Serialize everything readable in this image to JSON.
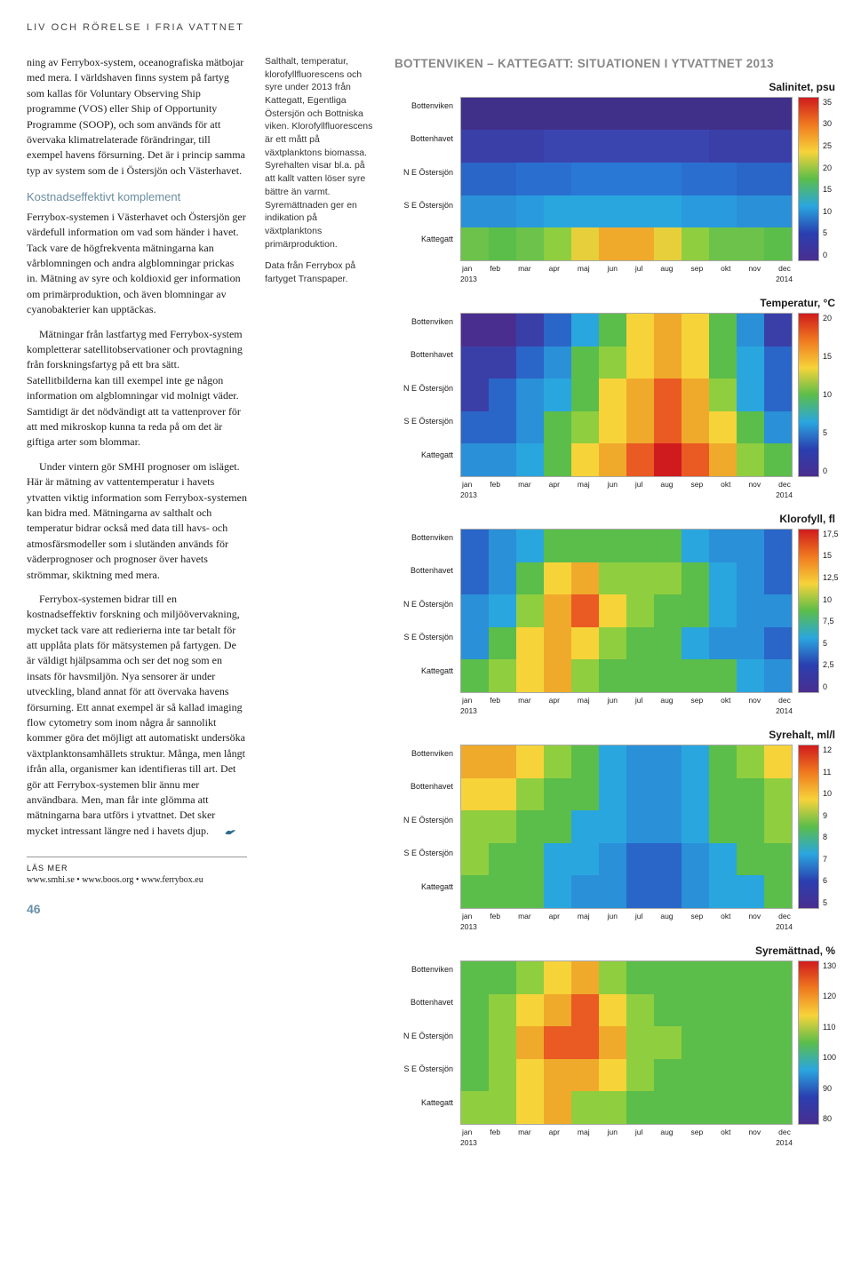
{
  "kicker": "LIV OCH RÖRELSE I FRIA VATTNET",
  "page_number": "46",
  "body": {
    "p1": "ning av Ferrybox-system, oceanografiska mätbojar med mera. I världshaven finns system på fartyg som kallas för Voluntary Observing Ship programme (VOS) eller Ship of Opportunity Programme (SOOP), och som används för att övervaka klimatrelaterade förändringar, till exempel havens försurning. Det är i princip samma typ av system som de i Östersjön och Västerhavet.",
    "sub1": "Kostnadseffektivt komplement",
    "p2": "Ferrybox-systemen i Västerhavet och Östersjön ger värdefull information om vad som händer i havet. Tack vare de högfrekventa mätningarna kan vårblomningen och andra algblomningar prickas in. Mätning av syre och koldioxid ger information om primärproduktion, och även blomningar av cyanobakterier kan upptäckas.",
    "p3": "Mätningar från lastfartyg med Ferrybox-system kompletterar satellitobservationer och provtagning från forskningsfartyg på ett bra sätt. Satellitbilderna kan till exempel inte ge någon information om algblomningar vid molnigt väder. Samtidigt är det nödvändigt att ta vattenprover för att med mikroskop kunna ta reda på om det är giftiga arter som blommar.",
    "p4": "Under vintern gör SMHI prognoser om isläget. Här är mätning av vattentemperatur i havets ytvatten viktig information som Ferrybox-systemen kan bidra med. Mätningarna av salthalt och temperatur bidrar också med data till havs- och atmosfärsmodeller som i slutänden används för väderprognoser och prognoser över havets strömmar, skiktning med mera.",
    "p5": "Ferrybox-systemen bidrar till en kostnadseffektiv forskning och miljöövervakning, mycket tack vare att redierierna inte tar betalt för att upplåta plats för mätsystemen på fartygen. De är väldigt hjälpsamma och ser det nog som en insats för havsmiljön. Nya sensorer är under utveckling, bland annat för att övervaka havens försurning. Ett annat exempel är så kallad imaging flow cytometry som inom några år sannolikt kommer göra det möjligt att automatiskt undersöka växtplanktonsamhällets struktur. Många, men långt ifrån alla, organismer kan identifieras till art. Det gör att Ferrybox-systemen blir ännu mer användbara. Men, man får inte glömma att mätningarna bara utförs i ytvattnet. Det sker mycket intressant längre ned i havets djup."
  },
  "refs": {
    "label": "LÄS MER",
    "links": "www.smhi.se • www.boos.org • www.ferrybox.eu"
  },
  "caption": {
    "p1": "Salthalt, temperatur, klorofyllfluorescens och syre under 2013 från Kattegatt, Egentliga Östersjön och Bottniska viken. Klorofyllfluorescens är ett mått på växtplanktons biomassa. Syrehalten visar bl.a. på att kallt vatten löser syre bättre än varmt. Syremättnaden ger en indikation på växtplanktons primärproduktion.",
    "p2": "Data från Ferrybox på fartyget Transpaper."
  },
  "figure": {
    "title": "BOTTENVIKEN – KATTEGATT: SITUATIONEN I YTVATTNET 2013",
    "x_ticks": [
      "jan",
      "feb",
      "mar",
      "apr",
      "maj",
      "jun",
      "jul",
      "aug",
      "sep",
      "okt",
      "nov",
      "dec"
    ],
    "x_year_left": "2013",
    "x_year_right": "2014",
    "y_labels": [
      "Bottenviken",
      "Bottenhavet",
      "N E Östersjön",
      "S E Östersjön",
      "Kattegatt"
    ],
    "panels": [
      {
        "title": "Salinitet, psu",
        "scale_ticks": [
          "35",
          "30",
          "25",
          "20",
          "15",
          "10",
          "5",
          "0"
        ],
        "gradient": [
          "#d01b1e",
          "#f07a1f",
          "#f7d33a",
          "#5bbd4a",
          "#2aa6df",
          "#2a3fb0",
          "#4a2e8f"
        ],
        "rows": [
          {
            "colors": [
              "#403089",
              "#403089",
              "#403089",
              "#403089",
              "#403089",
              "#403089",
              "#403089",
              "#403089",
              "#403089",
              "#403089",
              "#403089",
              "#403089"
            ]
          },
          {
            "colors": [
              "#3a3fa8",
              "#3a3fa8",
              "#3a3fa8",
              "#3b45b0",
              "#3b45b0",
              "#3b45b0",
              "#3b45b0",
              "#3b45b0",
              "#3b45b0",
              "#3a3fa8",
              "#3a3fa8",
              "#3a3fa8"
            ]
          },
          {
            "colors": [
              "#2a66c8",
              "#2a66c8",
              "#2a6fd0",
              "#2a6fd0",
              "#2a78d6",
              "#2a78d6",
              "#2a78d6",
              "#2a78d6",
              "#2a6fd0",
              "#2a6fd0",
              "#2a66c8",
              "#2a66c8"
            ]
          },
          {
            "colors": [
              "#2a90d8",
              "#2a90d8",
              "#2a9adf",
              "#2aa6df",
              "#2aa6df",
              "#2aa6df",
              "#2aa6df",
              "#2aa6df",
              "#2a9adf",
              "#2a9adf",
              "#2a90d8",
              "#2a90d8"
            ]
          },
          {
            "colors": [
              "#6cc24a",
              "#5bbd4a",
              "#6cc24a",
              "#8fce3f",
              "#e7cf3b",
              "#f0aa2b",
              "#f0aa2b",
              "#e7cf3b",
              "#8fce3f",
              "#6cc24a",
              "#6cc24a",
              "#5bbd4a"
            ]
          }
        ]
      },
      {
        "title": "Temperatur, °C",
        "scale_ticks": [
          "20",
          "15",
          "10",
          "5",
          "0"
        ],
        "gradient": [
          "#d01b1e",
          "#f07a1f",
          "#f7d33a",
          "#5bbd4a",
          "#2aa6df",
          "#2a3fb0",
          "#4a2e8f"
        ],
        "rows": [
          {
            "colors": [
              "#4a2e8f",
              "#4a2e8f",
              "#3a3fa8",
              "#2a66c8",
              "#2aa6df",
              "#5bbd4a",
              "#f7d33a",
              "#f0aa2b",
              "#f7d33a",
              "#5bbd4a",
              "#2a90d8",
              "#3a3fa8"
            ]
          },
          {
            "colors": [
              "#3a3fa8",
              "#3a3fa8",
              "#2a66c8",
              "#2a90d8",
              "#5bbd4a",
              "#8fce3f",
              "#f7d33a",
              "#f0aa2b",
              "#f7d33a",
              "#5bbd4a",
              "#2aa6df",
              "#2a66c8"
            ]
          },
          {
            "colors": [
              "#3a3fa8",
              "#2a66c8",
              "#2a90d8",
              "#2aa6df",
              "#5bbd4a",
              "#f7d33a",
              "#f0aa2b",
              "#ea5a23",
              "#f0aa2b",
              "#8fce3f",
              "#2aa6df",
              "#2a66c8"
            ]
          },
          {
            "colors": [
              "#2a66c8",
              "#2a66c8",
              "#2a90d8",
              "#5bbd4a",
              "#8fce3f",
              "#f7d33a",
              "#f0aa2b",
              "#ea5a23",
              "#f0aa2b",
              "#f7d33a",
              "#5bbd4a",
              "#2a90d8"
            ]
          },
          {
            "colors": [
              "#2a90d8",
              "#2a90d8",
              "#2aa6df",
              "#5bbd4a",
              "#f7d33a",
              "#f0aa2b",
              "#ea5a23",
              "#d01b1e",
              "#ea5a23",
              "#f0aa2b",
              "#8fce3f",
              "#5bbd4a"
            ]
          }
        ]
      },
      {
        "title": "Klorofyll, fl",
        "scale_ticks": [
          "17,5",
          "15",
          "12,5",
          "10",
          "7,5",
          "5",
          "2,5",
          "0"
        ],
        "gradient": [
          "#d01b1e",
          "#f07a1f",
          "#f7d33a",
          "#5bbd4a",
          "#2aa6df",
          "#2a3fb0",
          "#4a2e8f"
        ],
        "rows": [
          {
            "colors": [
              "#2a66c8",
              "#2a90d8",
              "#2aa6df",
              "#5bbd4a",
              "#5bbd4a",
              "#5bbd4a",
              "#5bbd4a",
              "#5bbd4a",
              "#2aa6df",
              "#2a90d8",
              "#2a90d8",
              "#2a66c8"
            ]
          },
          {
            "colors": [
              "#2a66c8",
              "#2a90d8",
              "#5bbd4a",
              "#f7d33a",
              "#f0aa2b",
              "#8fce3f",
              "#8fce3f",
              "#8fce3f",
              "#5bbd4a",
              "#2aa6df",
              "#2a90d8",
              "#2a66c8"
            ]
          },
          {
            "colors": [
              "#2a90d8",
              "#2aa6df",
              "#8fce3f",
              "#f0aa2b",
              "#ea5a23",
              "#f7d33a",
              "#8fce3f",
              "#5bbd4a",
              "#5bbd4a",
              "#2aa6df",
              "#2a90d8",
              "#2a90d8"
            ]
          },
          {
            "colors": [
              "#2a90d8",
              "#5bbd4a",
              "#f7d33a",
              "#f0aa2b",
              "#f7d33a",
              "#8fce3f",
              "#5bbd4a",
              "#5bbd4a",
              "#2aa6df",
              "#2a90d8",
              "#2a90d8",
              "#2a66c8"
            ]
          },
          {
            "colors": [
              "#5bbd4a",
              "#8fce3f",
              "#f7d33a",
              "#f0aa2b",
              "#8fce3f",
              "#5bbd4a",
              "#5bbd4a",
              "#5bbd4a",
              "#5bbd4a",
              "#5bbd4a",
              "#2aa6df",
              "#2a90d8"
            ]
          }
        ]
      },
      {
        "title": "Syrehalt, ml/l",
        "scale_ticks": [
          "12",
          "11",
          "10",
          "9",
          "8",
          "7",
          "6",
          "5"
        ],
        "gradient": [
          "#d01b1e",
          "#f07a1f",
          "#f7d33a",
          "#5bbd4a",
          "#2aa6df",
          "#2a3fb0",
          "#4a2e8f"
        ],
        "rows": [
          {
            "colors": [
              "#f0aa2b",
              "#f0aa2b",
              "#f7d33a",
              "#8fce3f",
              "#5bbd4a",
              "#2aa6df",
              "#2a90d8",
              "#2a90d8",
              "#2aa6df",
              "#5bbd4a",
              "#8fce3f",
              "#f7d33a"
            ]
          },
          {
            "colors": [
              "#f7d33a",
              "#f7d33a",
              "#8fce3f",
              "#5bbd4a",
              "#5bbd4a",
              "#2aa6df",
              "#2a90d8",
              "#2a90d8",
              "#2aa6df",
              "#5bbd4a",
              "#5bbd4a",
              "#8fce3f"
            ]
          },
          {
            "colors": [
              "#8fce3f",
              "#8fce3f",
              "#5bbd4a",
              "#5bbd4a",
              "#2aa6df",
              "#2aa6df",
              "#2a90d8",
              "#2a90d8",
              "#2aa6df",
              "#5bbd4a",
              "#5bbd4a",
              "#8fce3f"
            ]
          },
          {
            "colors": [
              "#8fce3f",
              "#5bbd4a",
              "#5bbd4a",
              "#2aa6df",
              "#2aa6df",
              "#2a90d8",
              "#2a66c8",
              "#2a66c8",
              "#2a90d8",
              "#2aa6df",
              "#5bbd4a",
              "#5bbd4a"
            ]
          },
          {
            "colors": [
              "#5bbd4a",
              "#5bbd4a",
              "#5bbd4a",
              "#2aa6df",
              "#2a90d8",
              "#2a90d8",
              "#2a66c8",
              "#2a66c8",
              "#2a90d8",
              "#2aa6df",
              "#2aa6df",
              "#5bbd4a"
            ]
          }
        ]
      },
      {
        "title": "Syremättnad, %",
        "scale_ticks": [
          "130",
          "120",
          "110",
          "100",
          "90",
          "80"
        ],
        "gradient": [
          "#d01b1e",
          "#f07a1f",
          "#f7d33a",
          "#5bbd4a",
          "#2aa6df",
          "#2a3fb0",
          "#4a2e8f"
        ],
        "rows": [
          {
            "colors": [
              "#5bbd4a",
              "#5bbd4a",
              "#8fce3f",
              "#f7d33a",
              "#f0aa2b",
              "#8fce3f",
              "#5bbd4a",
              "#5bbd4a",
              "#5bbd4a",
              "#5bbd4a",
              "#5bbd4a",
              "#5bbd4a"
            ]
          },
          {
            "colors": [
              "#5bbd4a",
              "#8fce3f",
              "#f7d33a",
              "#f0aa2b",
              "#ea5a23",
              "#f7d33a",
              "#8fce3f",
              "#5bbd4a",
              "#5bbd4a",
              "#5bbd4a",
              "#5bbd4a",
              "#5bbd4a"
            ]
          },
          {
            "colors": [
              "#5bbd4a",
              "#8fce3f",
              "#f0aa2b",
              "#ea5a23",
              "#ea5a23",
              "#f0aa2b",
              "#8fce3f",
              "#8fce3f",
              "#5bbd4a",
              "#5bbd4a",
              "#5bbd4a",
              "#5bbd4a"
            ]
          },
          {
            "colors": [
              "#5bbd4a",
              "#8fce3f",
              "#f7d33a",
              "#f0aa2b",
              "#f0aa2b",
              "#f7d33a",
              "#8fce3f",
              "#5bbd4a",
              "#5bbd4a",
              "#5bbd4a",
              "#5bbd4a",
              "#5bbd4a"
            ]
          },
          {
            "colors": [
              "#8fce3f",
              "#8fce3f",
              "#f7d33a",
              "#f0aa2b",
              "#8fce3f",
              "#8fce3f",
              "#5bbd4a",
              "#5bbd4a",
              "#5bbd4a",
              "#5bbd4a",
              "#5bbd4a",
              "#5bbd4a"
            ]
          }
        ]
      }
    ]
  }
}
